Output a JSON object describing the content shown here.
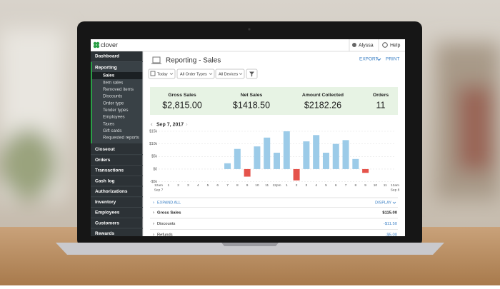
{
  "header": {
    "brand": "clover",
    "user": "Alyssa",
    "help": "Help"
  },
  "sidebar": {
    "top": [
      "Dashboard",
      "Reporting"
    ],
    "sub": [
      "Sales",
      "Item sales",
      "Removed items",
      "Discounts",
      "Order type",
      "Tender types",
      "Employees",
      "Taxes",
      "Gift cards",
      "Requested reports"
    ],
    "bottom": [
      "Closeout",
      "Orders",
      "Transactions",
      "Cash log",
      "Authorizations",
      "Inventory",
      "Employees",
      "Customers",
      "Rewards"
    ]
  },
  "page": {
    "title": "Reporting - Sales",
    "export": "EXPORT",
    "print": "PRINT",
    "filters": [
      "Today",
      "All Order Types",
      "All Devices"
    ]
  },
  "summary": [
    {
      "label": "Gross Sales",
      "value": "$2,815.00"
    },
    {
      "label": "Net Sales",
      "value": "$1418.50"
    },
    {
      "label": "Amount Collected",
      "value": "$2182.26"
    },
    {
      "label": "Orders",
      "value": "11"
    }
  ],
  "date_nav": "Sep 7, 2017",
  "chart": {
    "type": "bar",
    "x_labels": [
      "12am",
      "1",
      "2",
      "3",
      "4",
      "5",
      "6",
      "7",
      "8",
      "9",
      "10",
      "11",
      "12pm",
      "1",
      "2",
      "3",
      "4",
      "5",
      "6",
      "7",
      "8",
      "9",
      "10",
      "11",
      "12am"
    ],
    "date_labels": [
      "Sep 7",
      "Sep 8"
    ],
    "values": [
      null,
      null,
      null,
      null,
      null,
      null,
      null,
      2300,
      8000,
      -3000,
      9000,
      12500,
      6500,
      15000,
      -4500,
      11000,
      13500,
      6500,
      10000,
      11500,
      4000,
      -1500,
      null,
      null,
      null
    ],
    "color": "#9ccbe8",
    "negative_color": "#e5534b",
    "ylim": [
      -5000,
      15000
    ],
    "yticks": [
      {
        "value": -5000,
        "label": "-$5k"
      },
      {
        "value": 0,
        "label": "$0"
      },
      {
        "value": 5000,
        "label": "$5k"
      },
      {
        "value": 10000,
        "label": "$10k"
      },
      {
        "value": 15000,
        "label": "$15k"
      }
    ],
    "grid": true
  },
  "table": {
    "expand_all": "EXPAND ALL",
    "display": "DISPLAY",
    "rows": [
      [
        "Gross Sales",
        "$115.00"
      ],
      [
        "Discounts",
        "-$11.50"
      ],
      [
        "Refunds",
        "-$5.00"
      ]
    ]
  }
}
